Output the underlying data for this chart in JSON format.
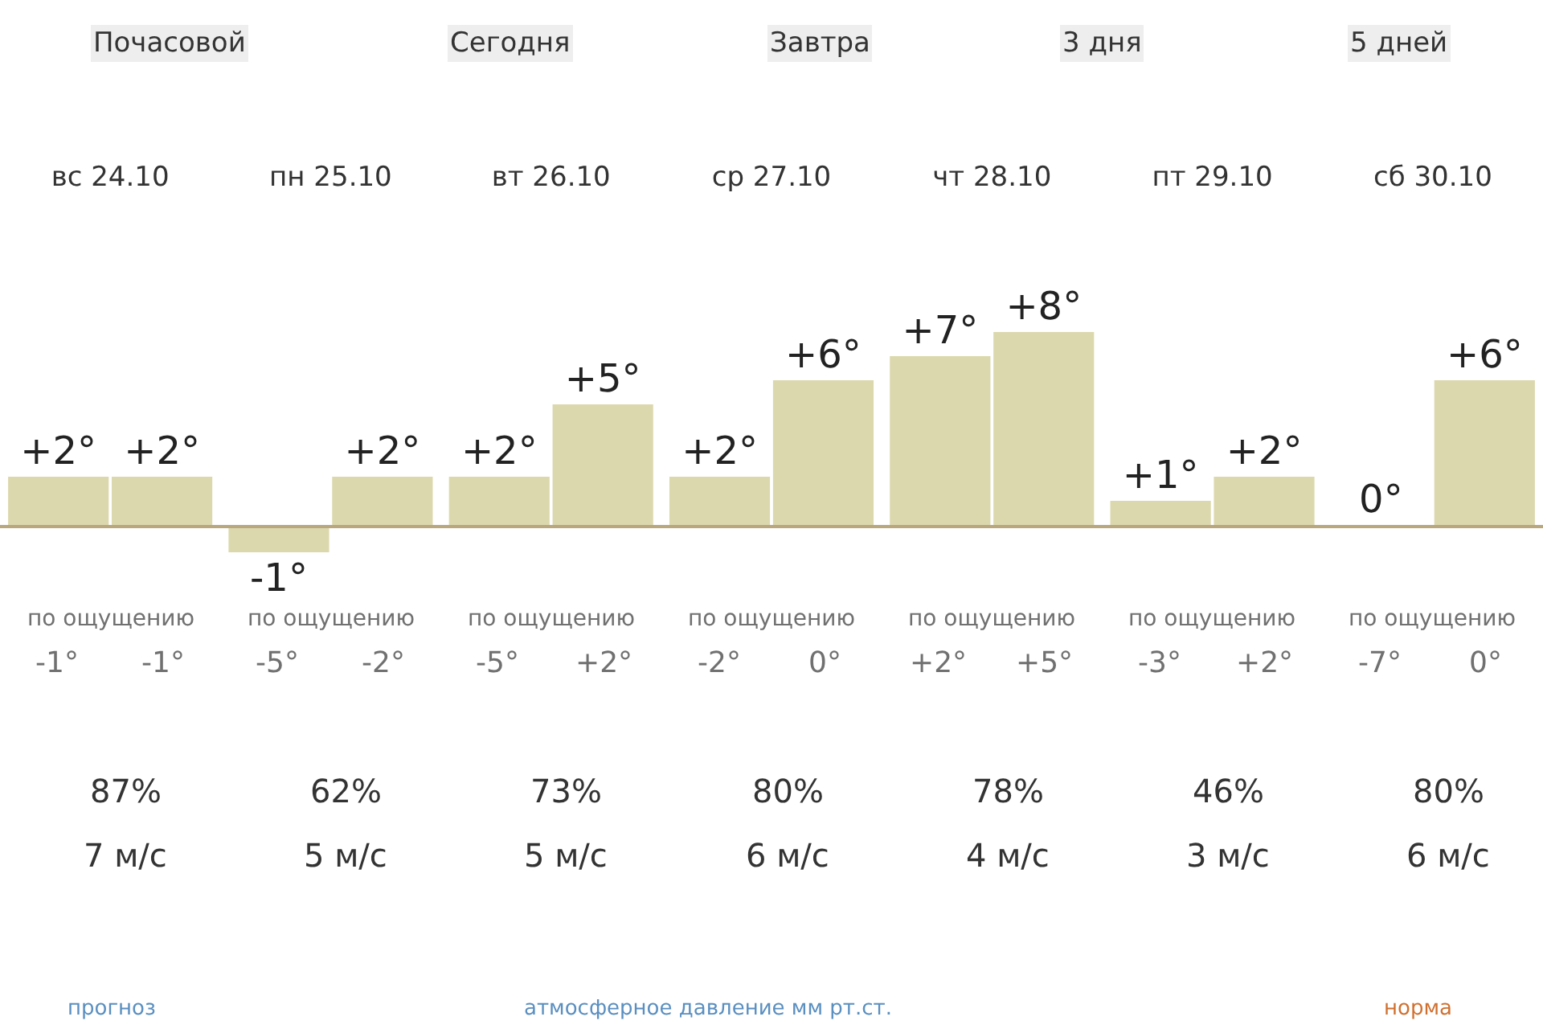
{
  "chart_data": {
    "type": "bar",
    "categories": [
      "вс 24.10",
      "пн 25.10",
      "вт 26.10",
      "ср 27.10",
      "чт 28.10",
      "пт 29.10",
      "сб 30.10"
    ],
    "series": [
      {
        "color": "#dcd8ad",
        "values": [
          2,
          -1,
          2,
          2,
          7,
          1,
          0
        ],
        "value_labels": [
          "+2°",
          "-1°",
          "+2°",
          "+2°",
          "+7°",
          "+1°",
          "0°"
        ]
      },
      {
        "color": "#dcd8ad",
        "values": [
          2,
          2,
          5,
          6,
          8,
          2,
          6
        ],
        "value_labels": [
          "+2°",
          "+2°",
          "+5°",
          "+6°",
          "+8°",
          "+2°",
          "+6°"
        ]
      }
    ],
    "ref_lines": [
      {
        "axis": "y",
        "value": 0,
        "color": "#b9a77e"
      }
    ],
    "tick_labels": "x",
    "annotations": [
      "Почасовой",
      "Сегодня",
      "Завтра",
      "3 дня",
      "5 дней",
      "по ощущению",
      "-1°",
      "-1°",
      "87%",
      "7 м/с",
      "по ощущению",
      "-5°",
      "-2°",
      "62%",
      "5 м/с",
      "по ощущению",
      "-5°",
      "+2°",
      "73%",
      "5 м/с",
      "по ощущению",
      "-2°",
      "0°",
      "80%",
      "6 м/с",
      "по ощущению",
      "+2°",
      "+5°",
      "78%",
      "4 м/с",
      "по ощущению",
      "-3°",
      "+2°",
      "46%",
      "3 м/с",
      "по ощущению",
      "-7°",
      "0°",
      "80%",
      "6 м/с",
      "прогноз",
      "атмосферное давление мм рт.ст.",
      "норма"
    ]
  }
}
